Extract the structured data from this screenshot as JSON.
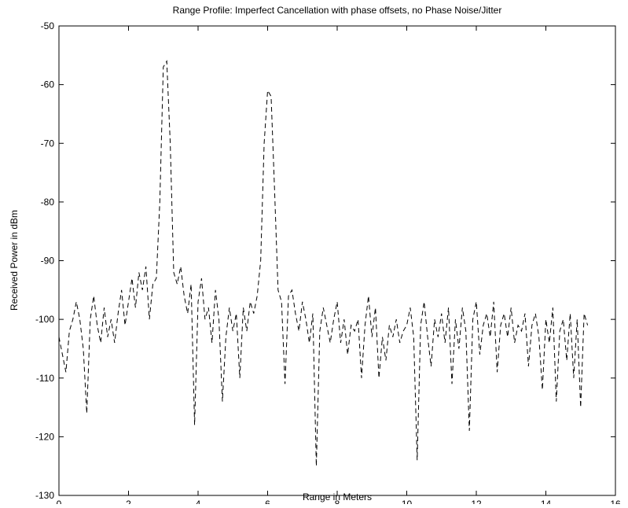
{
  "chart_data": {
    "type": "line",
    "title": "Range Profile: Imperfect Cancellation with phase offsets, no Phase Noise/Jitter",
    "x_label": "Range in Meters",
    "y_label": "Received Power in dBm",
    "xlim": [
      0,
      16
    ],
    "xticks": [
      0,
      2,
      4,
      6,
      8,
      10,
      12,
      14,
      16
    ],
    "ylim": [
      -130,
      -50
    ],
    "yticks": [
      -130,
      -120,
      -110,
      -100,
      -90,
      -80,
      -70,
      -60,
      -50
    ],
    "grid": false,
    "x": [
      0.0,
      0.1,
      0.2,
      0.3,
      0.4,
      0.5,
      0.6,
      0.7,
      0.8,
      0.9,
      1.0,
      1.1,
      1.2,
      1.3,
      1.4,
      1.5,
      1.6,
      1.7,
      1.8,
      1.9,
      2.0,
      2.1,
      2.2,
      2.3,
      2.4,
      2.5,
      2.6,
      2.7,
      2.8,
      2.9,
      3.0,
      3.1,
      3.2,
      3.3,
      3.4,
      3.5,
      3.6,
      3.7,
      3.8,
      3.9,
      4.0,
      4.1,
      4.2,
      4.3,
      4.4,
      4.5,
      4.6,
      4.7,
      4.8,
      4.9,
      5.0,
      5.1,
      5.2,
      5.3,
      5.4,
      5.5,
      5.6,
      5.7,
      5.8,
      5.9,
      6.0,
      6.1,
      6.2,
      6.3,
      6.4,
      6.5,
      6.6,
      6.7,
      6.8,
      6.9,
      7.0,
      7.1,
      7.2,
      7.3,
      7.4,
      7.5,
      7.6,
      7.7,
      7.8,
      7.9,
      8.0,
      8.1,
      8.2,
      8.3,
      8.4,
      8.5,
      8.6,
      8.7,
      8.8,
      8.9,
      9.0,
      9.1,
      9.2,
      9.3,
      9.4,
      9.5,
      9.6,
      9.7,
      9.8,
      9.9,
      10.0,
      10.1,
      10.2,
      10.3,
      10.4,
      10.5,
      10.6,
      10.7,
      10.8,
      10.9,
      11.0,
      11.1,
      11.2,
      11.3,
      11.4,
      11.5,
      11.6,
      11.7,
      11.8,
      11.9,
      12.0,
      12.1,
      12.2,
      12.3,
      12.4,
      12.5,
      12.6,
      12.7,
      12.8,
      12.9,
      13.0,
      13.1,
      13.2,
      13.3,
      13.4,
      13.5,
      13.6,
      13.7,
      13.8,
      13.9,
      14.0,
      14.1,
      14.2,
      14.3,
      14.4,
      14.5,
      14.6,
      14.7,
      14.8,
      14.9,
      15.0,
      15.1,
      15.2
    ],
    "series": [
      {
        "color": "#000000",
        "values": [
          -103,
          -106,
          -109,
          -102,
          -100,
          -97,
          -100,
          -105,
          -116,
          -100,
          -96,
          -101,
          -104,
          -98,
          -103,
          -100,
          -104,
          -99,
          -95,
          -101,
          -97,
          -93,
          -98,
          -92,
          -95,
          -91,
          -100,
          -94,
          -93,
          -80,
          -57,
          -56,
          -70,
          -92,
          -94,
          -91,
          -96,
          -99,
          -94,
          -118,
          -97,
          -93,
          -100,
          -98,
          -104,
          -95,
          -100,
          -114,
          -103,
          -98,
          -102,
          -99,
          -110,
          -98,
          -102,
          -97,
          -99,
          -96,
          -90,
          -70,
          -61,
          -62,
          -78,
          -95,
          -97,
          -111,
          -96,
          -95,
          -99,
          -102,
          -97,
          -100,
          -104,
          -99,
          -125,
          -102,
          -98,
          -101,
          -104,
          -100,
          -97,
          -104,
          -100,
          -106,
          -101,
          -102,
          -100,
          -110,
          -101,
          -96,
          -103,
          -98,
          -110,
          -103,
          -107,
          -101,
          -103,
          -100,
          -104,
          -102,
          -101,
          -98,
          -103,
          -124,
          -101,
          -97,
          -103,
          -108,
          -100,
          -103,
          -99,
          -104,
          -98,
          -111,
          -100,
          -105,
          -98,
          -102,
          -119,
          -100,
          -97,
          -106,
          -101,
          -99,
          -103,
          -97,
          -109,
          -101,
          -99,
          -103,
          -98,
          -104,
          -101,
          -102,
          -99,
          -108,
          -101,
          -99,
          -103,
          -112,
          -100,
          -104,
          -98,
          -114,
          -102,
          -100,
          -107,
          -99,
          -110,
          -100,
          -115,
          -99,
          -101
        ]
      }
    ]
  }
}
